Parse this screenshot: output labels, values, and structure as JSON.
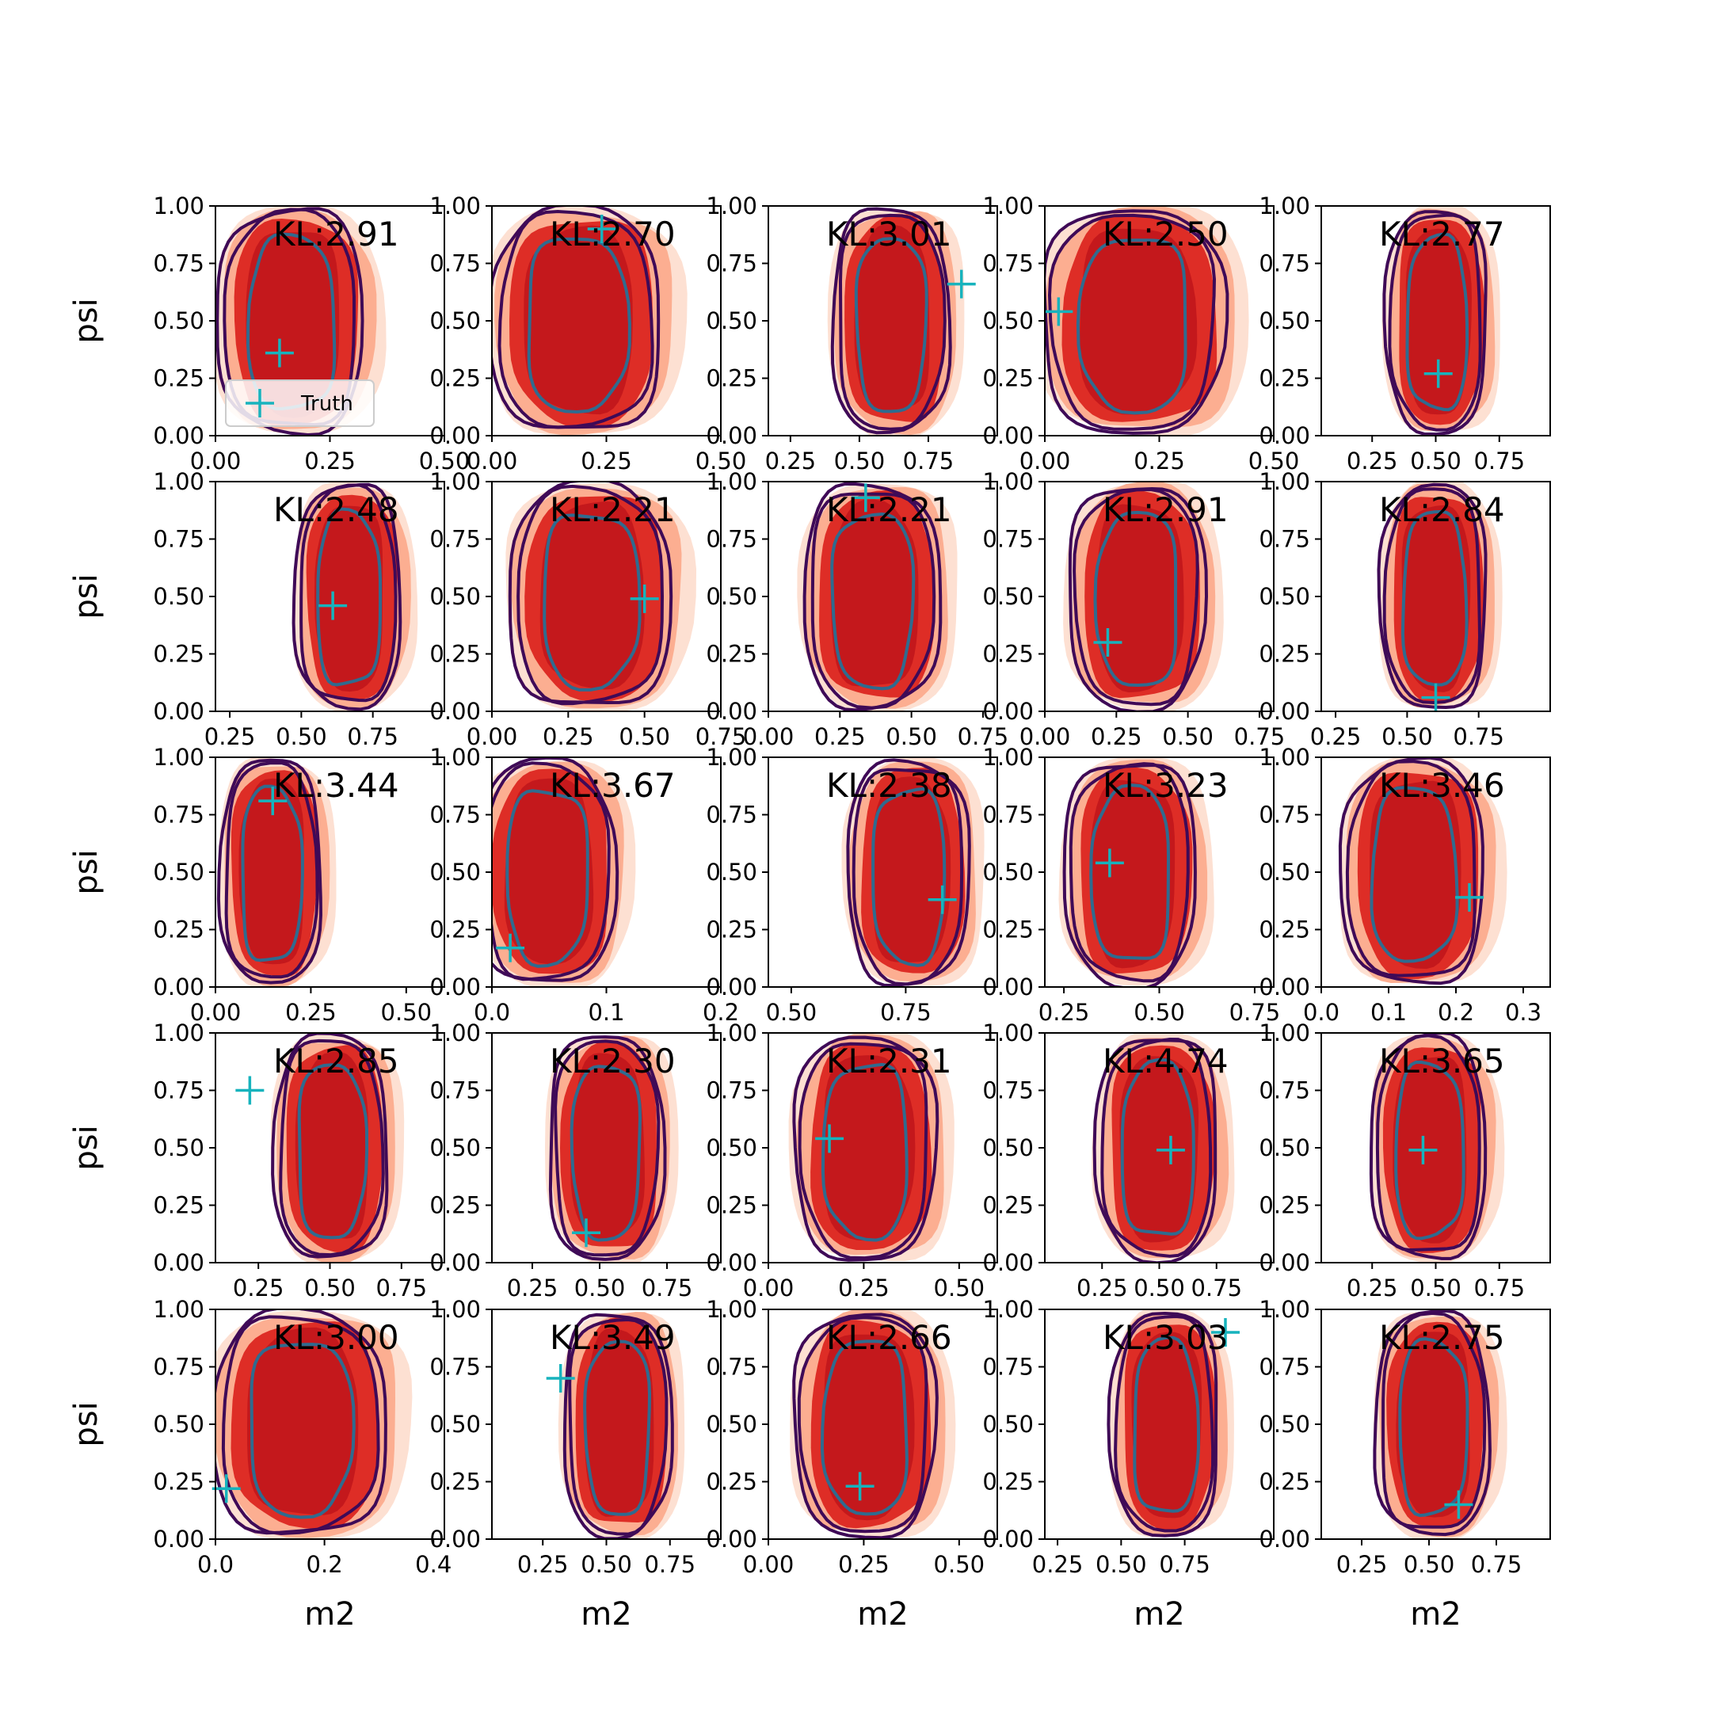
{
  "chart_data": {
    "type": "contour",
    "description_text_visible": true,
    "xlabel": "m2",
    "ylabel": "psi",
    "ylim": [
      0,
      1
    ],
    "yticks": [
      "0.00",
      "0.25",
      "0.50",
      "0.75",
      "1.00"
    ],
    "legend": {
      "label": "Truth",
      "placement": "lower-left",
      "panel": 0
    },
    "colors": {
      "fill_light": "#fde0d2",
      "fill_mid": "#fcae91",
      "fill_dark": "#de2d26",
      "fill_core": "#c0151b",
      "contour_outer": "#3f0a57",
      "contour_inner": "#2f6b8f",
      "truth_marker": "#17b3bd"
    },
    "panels": [
      {
        "kl": "KL:2.91",
        "xlim": [
          0.0,
          0.5
        ],
        "xticks": [
          "0.00",
          "0.25",
          "0.50"
        ],
        "cx": 0.17,
        "wx": 0.12,
        "tx": 0.14,
        "ty": 0.36
      },
      {
        "kl": "KL:2.70",
        "xlim": [
          0.0,
          0.5
        ],
        "xticks": [
          "0.00",
          "0.25",
          "0.50"
        ],
        "cx": 0.19,
        "wx": 0.14,
        "tx": 0.24,
        "ty": 0.9
      },
      {
        "kl": "KL:3.01",
        "xlim": [
          0.17,
          1.0
        ],
        "xticks": [
          "0.25",
          "0.50",
          "0.75"
        ],
        "cx": 0.62,
        "wx": 0.16,
        "tx": 0.87,
        "ty": 0.66
      },
      {
        "kl": "KL:2.50",
        "xlim": [
          0.0,
          0.5
        ],
        "xticks": [
          "0.00",
          "0.25",
          "0.50"
        ],
        "cx": 0.2,
        "wx": 0.15,
        "tx": 0.03,
        "ty": 0.54
      },
      {
        "kl": "KL:2.77",
        "xlim": [
          0.05,
          0.95
        ],
        "xticks": [
          "0.25",
          "0.50",
          "0.75"
        ],
        "cx": 0.51,
        "wx": 0.15,
        "tx": 0.51,
        "ty": 0.27
      },
      {
        "kl": "KL:2.48",
        "xlim": [
          0.2,
          1.0
        ],
        "xticks": [
          "0.25",
          "0.50",
          "0.75"
        ],
        "cx": 0.67,
        "wx": 0.14,
        "tx": 0.61,
        "ty": 0.46
      },
      {
        "kl": "KL:2.21",
        "xlim": [
          0.0,
          0.75
        ],
        "xticks": [
          "0.00",
          "0.25",
          "0.50",
          "0.75"
        ],
        "cx": 0.33,
        "wx": 0.2,
        "tx": 0.5,
        "ty": 0.49
      },
      {
        "kl": "KL:2.21",
        "xlim": [
          0.0,
          0.8
        ],
        "xticks": [
          "0.00",
          "0.25",
          "0.50",
          "0.75"
        ],
        "cx": 0.37,
        "wx": 0.18,
        "tx": 0.34,
        "ty": 0.93
      },
      {
        "kl": "KL:2.91",
        "xlim": [
          0.0,
          0.8
        ],
        "xticks": [
          "0.00",
          "0.25",
          "0.50",
          "0.75"
        ],
        "cx": 0.33,
        "wx": 0.18,
        "tx": 0.22,
        "ty": 0.3
      },
      {
        "kl": "KL:2.84",
        "xlim": [
          0.2,
          1.0
        ],
        "xticks": [
          "0.25",
          "0.50",
          "0.75"
        ],
        "cx": 0.6,
        "wx": 0.14,
        "tx": 0.6,
        "ty": 0.06
      },
      {
        "kl": "KL:3.44",
        "xlim": [
          0.0,
          0.6
        ],
        "xticks": [
          "0.00",
          "0.25",
          "0.50"
        ],
        "cx": 0.15,
        "wx": 0.1,
        "tx": 0.15,
        "ty": 0.81
      },
      {
        "kl": "KL:3.67",
        "xlim": [
          0.0,
          0.2
        ],
        "xticks": [
          "0.0",
          "0.1",
          "0.2"
        ],
        "cx": 0.05,
        "wx": 0.045,
        "tx": 0.016,
        "ty": 0.17
      },
      {
        "kl": "KL:2.38",
        "xlim": [
          0.45,
          0.95
        ],
        "xticks": [
          "0.50",
          "0.75"
        ],
        "cx": 0.76,
        "wx": 0.1,
        "tx": 0.83,
        "ty": 0.38
      },
      {
        "kl": "KL:3.23",
        "xlim": [
          0.2,
          0.8
        ],
        "xticks": [
          "0.25",
          "0.50",
          "0.75"
        ],
        "cx": 0.43,
        "wx": 0.13,
        "tx": 0.37,
        "ty": 0.54
      },
      {
        "kl": "KL:3.46",
        "xlim": [
          0.0,
          0.34
        ],
        "xticks": [
          "0.0",
          "0.1",
          "0.2",
          "0.3"
        ],
        "cx": 0.14,
        "wx": 0.08,
        "tx": 0.22,
        "ty": 0.39
      },
      {
        "kl": "KL:2.85",
        "xlim": [
          0.1,
          0.9
        ],
        "xticks": [
          "0.25",
          "0.50",
          "0.75"
        ],
        "cx": 0.51,
        "wx": 0.15,
        "tx": 0.22,
        "ty": 0.75
      },
      {
        "kl": "KL:2.30",
        "xlim": [
          0.1,
          0.95
        ],
        "xticks": [
          "0.25",
          "0.50",
          "0.75"
        ],
        "cx": 0.53,
        "wx": 0.16,
        "tx": 0.45,
        "ty": 0.13
      },
      {
        "kl": "KL:2.31",
        "xlim": [
          0.0,
          0.6
        ],
        "xticks": [
          "0.00",
          "0.25",
          "0.50"
        ],
        "cx": 0.26,
        "wx": 0.14,
        "tx": 0.16,
        "ty": 0.54
      },
      {
        "kl": "KL:4.74",
        "xlim": [
          0.0,
          1.0
        ],
        "xticks": [
          "0.25",
          "0.50",
          "0.75"
        ],
        "cx": 0.5,
        "wx": 0.2,
        "tx": 0.55,
        "ty": 0.49
      },
      {
        "kl": "KL:3.65",
        "xlim": [
          0.05,
          0.95
        ],
        "xticks": [
          "0.25",
          "0.50",
          "0.75"
        ],
        "cx": 0.48,
        "wx": 0.17,
        "tx": 0.45,
        "ty": 0.49
      },
      {
        "kl": "KL:3.00",
        "xlim": [
          0.0,
          0.42
        ],
        "xticks": [
          "0.0",
          "0.2",
          "0.4"
        ],
        "cx": 0.16,
        "wx": 0.12,
        "tx": 0.02,
        "ty": 0.22
      },
      {
        "kl": "KL:3.49",
        "xlim": [
          0.05,
          0.95
        ],
        "xticks": [
          "0.25",
          "0.50",
          "0.75"
        ],
        "cx": 0.55,
        "wx": 0.16,
        "tx": 0.32,
        "ty": 0.7
      },
      {
        "kl": "KL:2.66",
        "xlim": [
          0.0,
          0.6
        ],
        "xticks": [
          "0.00",
          "0.25",
          "0.50"
        ],
        "cx": 0.26,
        "wx": 0.14,
        "tx": 0.24,
        "ty": 0.23
      },
      {
        "kl": "KL:3.03",
        "xlim": [
          0.2,
          1.1
        ],
        "xticks": [
          "0.25",
          "0.50",
          "0.75"
        ],
        "cx": 0.68,
        "wx": 0.16,
        "tx": 0.91,
        "ty": 0.9
      },
      {
        "kl": "KL:2.75",
        "xlim": [
          0.1,
          0.95
        ],
        "xticks": [
          "0.25",
          "0.50",
          "0.75"
        ],
        "cx": 0.52,
        "wx": 0.16,
        "tx": 0.61,
        "ty": 0.15
      }
    ]
  }
}
